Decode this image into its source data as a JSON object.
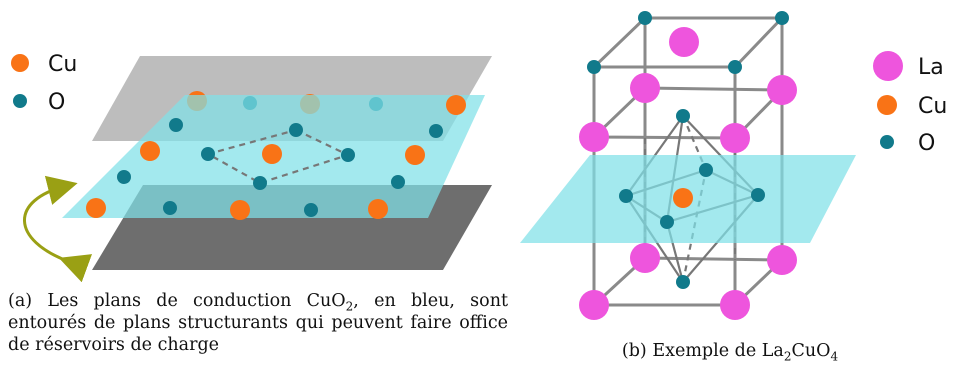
{
  "legend_a": {
    "cu": "Cu",
    "o": "O"
  },
  "legend_b": {
    "la": "La",
    "cu": "Cu",
    "o": "O"
  },
  "caption_a": {
    "label": "(a)",
    "text_before": "Les plans de conduction ",
    "formula_main": "CuO",
    "formula_sub": "2",
    "text_after": ", en bleu, sont entourés de plans structurants qui peuvent faire office de réservoirs de charge"
  },
  "caption_b": {
    "label": "(b)",
    "text_before": "Exemple de ",
    "f1": "La",
    "f1_sub": "2",
    "f2": "CuO",
    "f2_sub": "4"
  },
  "colors": {
    "cu": "#f97316",
    "o": "#117a8b",
    "la": "#ee55dd",
    "conduction_plane": "#7fe0e8",
    "upper_plane": "#bdbdbd",
    "lower_plane": "#6e6e6e",
    "arrow": "#9aa014",
    "frame": "#8a8a8a"
  }
}
